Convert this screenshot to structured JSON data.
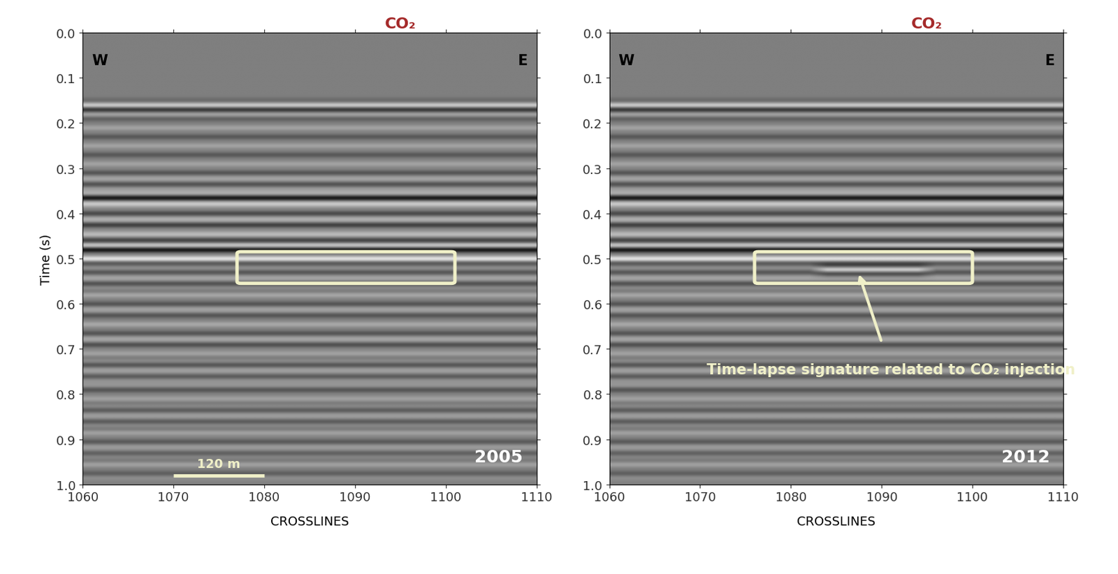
{
  "chart_data": [
    {
      "type": "seismic",
      "year": "2005",
      "x_label": "CROSSLINES",
      "y_label": "Time (s)",
      "xlim": [
        1060,
        1110
      ],
      "ylim": [
        1.0,
        0.0
      ],
      "xticks": [
        1060,
        1070,
        1080,
        1090,
        1100,
        1110
      ],
      "yticks": [
        0.0,
        0.1,
        0.2,
        0.3,
        0.4,
        0.5,
        0.6,
        0.7,
        0.8,
        0.9,
        1.0
      ],
      "west_label": "W",
      "east_label": "E",
      "well": {
        "label": "CO₂",
        "crossline": 1095
      },
      "box": {
        "crosslines": [
          1077,
          1101
        ],
        "time": [
          0.485,
          0.555
        ]
      },
      "scale_bar": {
        "label": "120 m",
        "crosslines": [
          1070,
          1080
        ],
        "time": 0.98
      },
      "reflectors": [
        [
          0.16,
          -0.5
        ],
        [
          0.17,
          0.5
        ],
        [
          0.19,
          0.3
        ],
        [
          0.21,
          -0.3
        ],
        [
          0.23,
          0.35
        ],
        [
          0.25,
          -0.3
        ],
        [
          0.27,
          0.35
        ],
        [
          0.29,
          -0.3
        ],
        [
          0.31,
          0.4
        ],
        [
          0.335,
          0.45
        ],
        [
          0.365,
          0.9
        ],
        [
          0.38,
          -0.4
        ],
        [
          0.4,
          0.5
        ],
        [
          0.425,
          0.6
        ],
        [
          0.445,
          -0.4
        ],
        [
          0.46,
          0.5
        ],
        [
          0.48,
          1.0
        ],
        [
          0.5,
          -0.9
        ],
        [
          0.53,
          0.4
        ],
        [
          0.555,
          0.45
        ],
        [
          0.58,
          -0.35
        ],
        [
          0.6,
          0.4
        ],
        [
          0.625,
          0.4
        ],
        [
          0.645,
          -0.35
        ],
        [
          0.665,
          0.4
        ],
        [
          0.69,
          0.45
        ],
        [
          0.71,
          -0.3
        ],
        [
          0.735,
          0.4
        ],
        [
          0.76,
          0.35
        ],
        [
          0.79,
          0.4
        ],
        [
          0.81,
          -0.3
        ],
        [
          0.835,
          0.35
        ],
        [
          0.86,
          0.35
        ],
        [
          0.885,
          -0.3
        ],
        [
          0.905,
          0.35
        ],
        [
          0.93,
          0.3
        ],
        [
          0.955,
          -0.3
        ],
        [
          0.975,
          0.3
        ]
      ]
    },
    {
      "type": "seismic",
      "year": "2012",
      "x_label": "CROSSLINES",
      "xlim": [
        1060,
        1110
      ],
      "ylim": [
        1.0,
        0.0
      ],
      "xticks": [
        1060,
        1070,
        1080,
        1090,
        1100,
        1110
      ],
      "yticks": [
        0.0,
        0.1,
        0.2,
        0.3,
        0.4,
        0.5,
        0.6,
        0.7,
        0.8,
        0.9,
        1.0
      ],
      "west_label": "W",
      "east_label": "E",
      "well": {
        "label": "CO₂",
        "crossline": 1095
      },
      "box": {
        "crosslines": [
          1076,
          1100
        ],
        "time": [
          0.485,
          0.555
        ]
      },
      "annotation": "Time-lapse signature related to CO₂ injection",
      "anomaly": {
        "crosslines": [
          1082,
          1096
        ],
        "time": 0.525,
        "amplitude": -0.8
      },
      "reflectors": [
        [
          0.16,
          -0.5
        ],
        [
          0.17,
          0.5
        ],
        [
          0.19,
          0.3
        ],
        [
          0.21,
          -0.3
        ],
        [
          0.23,
          0.35
        ],
        [
          0.25,
          -0.3
        ],
        [
          0.27,
          0.35
        ],
        [
          0.29,
          -0.3
        ],
        [
          0.31,
          0.4
        ],
        [
          0.335,
          0.45
        ],
        [
          0.365,
          0.9
        ],
        [
          0.38,
          -0.4
        ],
        [
          0.4,
          0.5
        ],
        [
          0.425,
          0.6
        ],
        [
          0.445,
          -0.4
        ],
        [
          0.46,
          0.5
        ],
        [
          0.48,
          1.0
        ],
        [
          0.5,
          -0.9
        ],
        [
          0.53,
          0.4
        ],
        [
          0.555,
          0.45
        ],
        [
          0.58,
          -0.35
        ],
        [
          0.6,
          0.4
        ],
        [
          0.625,
          0.4
        ],
        [
          0.645,
          -0.35
        ],
        [
          0.665,
          0.4
        ],
        [
          0.69,
          0.45
        ],
        [
          0.71,
          -0.3
        ],
        [
          0.735,
          0.4
        ],
        [
          0.76,
          0.35
        ],
        [
          0.79,
          0.4
        ],
        [
          0.81,
          -0.3
        ],
        [
          0.835,
          0.35
        ],
        [
          0.86,
          0.35
        ],
        [
          0.885,
          -0.3
        ],
        [
          0.905,
          0.35
        ],
        [
          0.93,
          0.3
        ],
        [
          0.955,
          -0.3
        ],
        [
          0.975,
          0.3
        ]
      ]
    }
  ]
}
